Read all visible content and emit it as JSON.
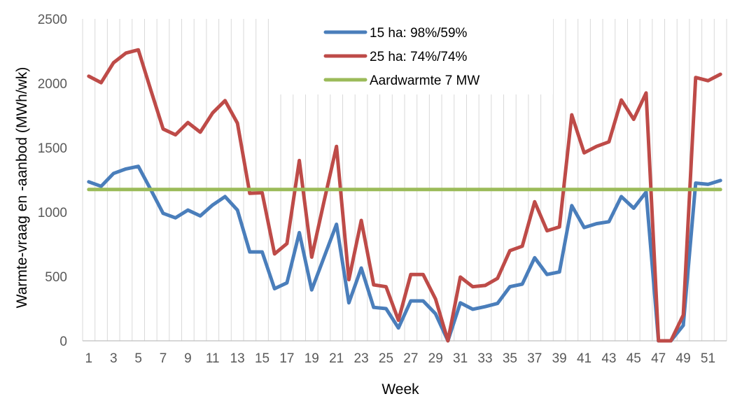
{
  "chart_data": {
    "type": "line",
    "title": "",
    "xlabel": "Week",
    "ylabel": "Warmte-vraag en -aanbod (MWh/wk)",
    "ylim": [
      0,
      2500
    ],
    "yticks": [
      0,
      500,
      1000,
      1500,
      2000,
      2500
    ],
    "x": [
      1,
      2,
      3,
      4,
      5,
      6,
      7,
      8,
      9,
      10,
      11,
      12,
      13,
      14,
      15,
      16,
      17,
      18,
      19,
      20,
      21,
      22,
      23,
      24,
      25,
      26,
      27,
      28,
      29,
      30,
      31,
      32,
      33,
      34,
      35,
      36,
      37,
      38,
      39,
      40,
      41,
      42,
      43,
      44,
      45,
      46,
      47,
      48,
      49,
      50,
      51,
      52
    ],
    "xtick_labels": [
      "1",
      "3",
      "5",
      "7",
      "9",
      "11",
      "13",
      "15",
      "17",
      "19",
      "21",
      "23",
      "25",
      "27",
      "29",
      "31",
      "33",
      "35",
      "37",
      "39",
      "41",
      "43",
      "45",
      "47",
      "49",
      "51"
    ],
    "grid": "vertical",
    "legend_position": "top-center",
    "series": [
      {
        "name": "15 ha: 98%/59%",
        "color": "#4a7ebb",
        "values": [
          1235,
          1200,
          1300,
          1335,
          1355,
          1175,
          990,
          955,
          1015,
          970,
          1055,
          1120,
          1015,
          690,
          690,
          405,
          450,
          840,
          395,
          650,
          905,
          295,
          565,
          260,
          250,
          100,
          310,
          310,
          210,
          0,
          295,
          245,
          265,
          290,
          420,
          440,
          645,
          515,
          535,
          1050,
          880,
          910,
          925,
          1120,
          1030,
          1155,
          0,
          0,
          120,
          1225,
          1215,
          1245
        ]
      },
      {
        "name": "25 ha: 74%/74%",
        "color": "#be4b48",
        "values": [
          2055,
          2005,
          2160,
          2235,
          2260,
          1950,
          1645,
          1600,
          1695,
          1620,
          1770,
          1865,
          1690,
          1145,
          1150,
          675,
          755,
          1400,
          650,
          1085,
          1510,
          475,
          935,
          435,
          420,
          160,
          515,
          515,
          325,
          0,
          495,
          420,
          430,
          485,
          700,
          735,
          1080,
          855,
          885,
          1755,
          1460,
          1510,
          1545,
          1870,
          1720,
          1925,
          0,
          0,
          200,
          2045,
          2020,
          2070
        ]
      },
      {
        "name": "Aardwarmte 7 MW",
        "color": "#9bbb59",
        "values": [
          1175,
          1175,
          1175,
          1175,
          1175,
          1175,
          1175,
          1175,
          1175,
          1175,
          1175,
          1175,
          1175,
          1175,
          1175,
          1175,
          1175,
          1175,
          1175,
          1175,
          1175,
          1175,
          1175,
          1175,
          1175,
          1175,
          1175,
          1175,
          1175,
          1175,
          1175,
          1175,
          1175,
          1175,
          1175,
          1175,
          1175,
          1175,
          1175,
          1175,
          1175,
          1175,
          1175,
          1175,
          1175,
          1175,
          1175,
          1175,
          1175,
          1175,
          1175,
          1175
        ]
      }
    ]
  }
}
